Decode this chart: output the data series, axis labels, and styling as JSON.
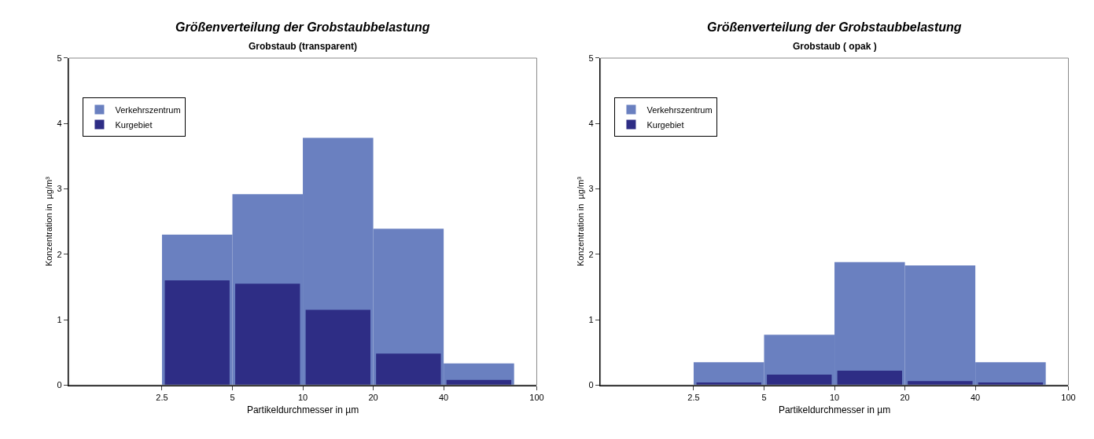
{
  "chart_data": [
    {
      "type": "histogram",
      "title": "Größenverteilung der Grobstaubbelastung",
      "subtitle": "Grobstaub (transparent)",
      "xlabel": "Partikeldurchmesser in µm",
      "ylabel": "Konzentration in  µg/m³",
      "bins": [
        2.5,
        5,
        10,
        20,
        40,
        80
      ],
      "log": "x",
      "xlim": [
        1,
        100
      ],
      "xticks": [
        2.5,
        5,
        10,
        20,
        40,
        100
      ],
      "ylim": [
        0,
        5
      ],
      "yticks": [
        0,
        1,
        2,
        3,
        4,
        5
      ],
      "grid": false,
      "legend": "top left",
      "series": [
        {
          "name": "Verkehrszentrum",
          "color": "#6a80c0",
          "values": [
            2.3,
            2.92,
            3.78,
            2.39,
            0.33
          ]
        },
        {
          "name": "Kurgebiet",
          "color": "#2e2d85",
          "values": [
            1.6,
            1.55,
            1.15,
            0.48,
            0.08
          ]
        }
      ]
    },
    {
      "type": "histogram",
      "title": "Größenverteilung der Grobstaubbelastung",
      "subtitle": "Grobstaub ( opak )",
      "xlabel": "Partikeldurchmesser in µm",
      "ylabel": "Konzentration in  µg/m³",
      "bins": [
        2.5,
        5,
        10,
        20,
        40,
        80
      ],
      "log": "x",
      "xlim": [
        1,
        100
      ],
      "xticks": [
        2.5,
        5,
        10,
        20,
        40,
        100
      ],
      "ylim": [
        0,
        5
      ],
      "yticks": [
        0,
        1,
        2,
        3,
        4,
        5
      ],
      "grid": false,
      "legend": "top left",
      "series": [
        {
          "name": "Verkehrszentrum",
          "color": "#6a80c0",
          "values": [
            0.35,
            0.77,
            1.88,
            1.83,
            0.35
          ]
        },
        {
          "name": "Kurgebiet",
          "color": "#2e2d85",
          "values": [
            0.04,
            0.16,
            0.22,
            0.06,
            0.04
          ]
        }
      ]
    }
  ]
}
